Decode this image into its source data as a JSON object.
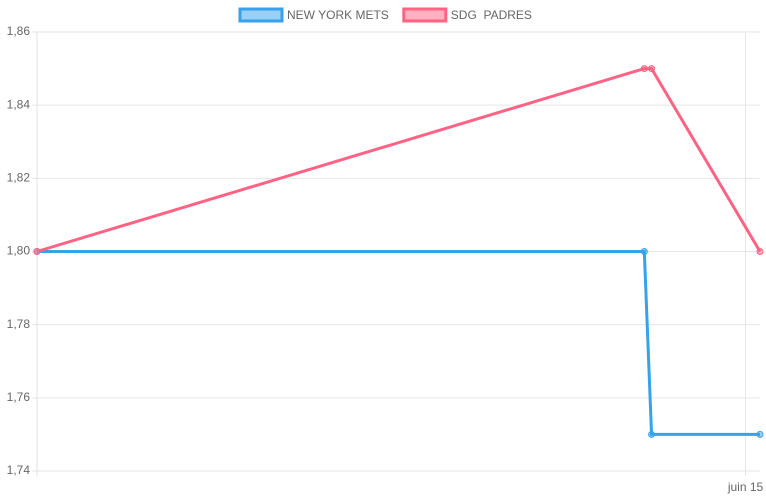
{
  "chart_data": {
    "type": "line",
    "x": [
      14.02,
      14.86,
      14.87,
      15.02
    ],
    "xlim": [
      14.02,
      15.02
    ],
    "xticks": [
      {
        "value": 15,
        "label": "juin 15"
      }
    ],
    "ylim": [
      1.74,
      1.86
    ],
    "yticks": [
      {
        "value": 1.74,
        "label": "1,74"
      },
      {
        "value": 1.76,
        "label": "1,76"
      },
      {
        "value": 1.78,
        "label": "1,78"
      },
      {
        "value": 1.8,
        "label": "1,80"
      },
      {
        "value": 1.82,
        "label": "1,82"
      },
      {
        "value": 1.84,
        "label": "1,84"
      },
      {
        "value": 1.86,
        "label": "1,86"
      }
    ],
    "grid": true,
    "legend": "top",
    "series": [
      {
        "name": "NEW YORK METS",
        "color": "#36a2eb",
        "values": [
          1.8,
          1.8,
          1.75,
          1.75
        ]
      },
      {
        "name": "SDG  PADRES",
        "color": "#ff6384",
        "values": [
          1.8,
          1.85,
          1.85,
          1.8
        ]
      }
    ]
  }
}
